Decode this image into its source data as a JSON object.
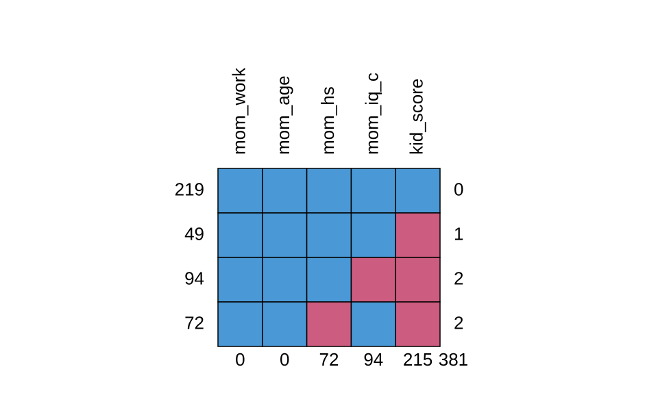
{
  "columns": [
    "mom_work",
    "mom_age",
    "mom_hs",
    "mom_iq_c",
    "kid_score"
  ],
  "rows": [
    {
      "count": 219,
      "cells": [
        1,
        1,
        1,
        1,
        1
      ],
      "missing": 0
    },
    {
      "count": 49,
      "cells": [
        1,
        1,
        1,
        1,
        0
      ],
      "missing": 1
    },
    {
      "count": 94,
      "cells": [
        1,
        1,
        1,
        0,
        0
      ],
      "missing": 2
    },
    {
      "count": 72,
      "cells": [
        1,
        1,
        0,
        1,
        0
      ],
      "missing": 2
    }
  ],
  "column_missing": [
    0,
    0,
    72,
    94,
    215
  ],
  "total_missing": 381,
  "colors": {
    "observed": "#4a98d5",
    "missing": "#cc5c80"
  }
}
